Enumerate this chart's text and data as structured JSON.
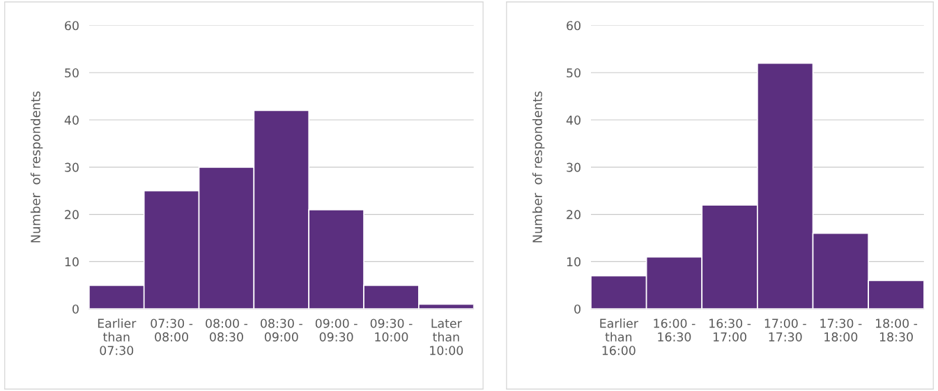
{
  "chart_data": [
    {
      "type": "bar",
      "ylabel": "Number  of respondents",
      "categories": [
        "Earlier\nthan\n07:30",
        "07:30 -\n08:00",
        "08:00 -\n08:30",
        "08:30 -\n09:00",
        "09:00 -\n09:30",
        "09:30 -\n10:00",
        "Later\nthan\n10:00"
      ],
      "values": [
        5,
        25,
        30,
        42,
        21,
        5,
        1
      ],
      "color": "#5b2f7f",
      "ylim": [
        0,
        60
      ],
      "yticks": [
        0,
        10,
        20,
        30,
        40,
        50,
        60
      ],
      "grid": "y"
    },
    {
      "type": "bar",
      "ylabel": "Number  of respondents",
      "categories": [
        "Earlier\nthan\n16:00",
        "16:00 -\n16:30",
        "16:30 -\n17:00",
        "17:00 -\n17:30",
        "17:30 -\n18:00",
        "18:00 -\n18:30"
      ],
      "values": [
        7,
        11,
        22,
        52,
        16,
        6
      ],
      "color": "#5b2f7f",
      "ylim": [
        0,
        60
      ],
      "yticks": [
        0,
        10,
        20,
        30,
        40,
        50,
        60
      ],
      "grid": "y"
    }
  ]
}
